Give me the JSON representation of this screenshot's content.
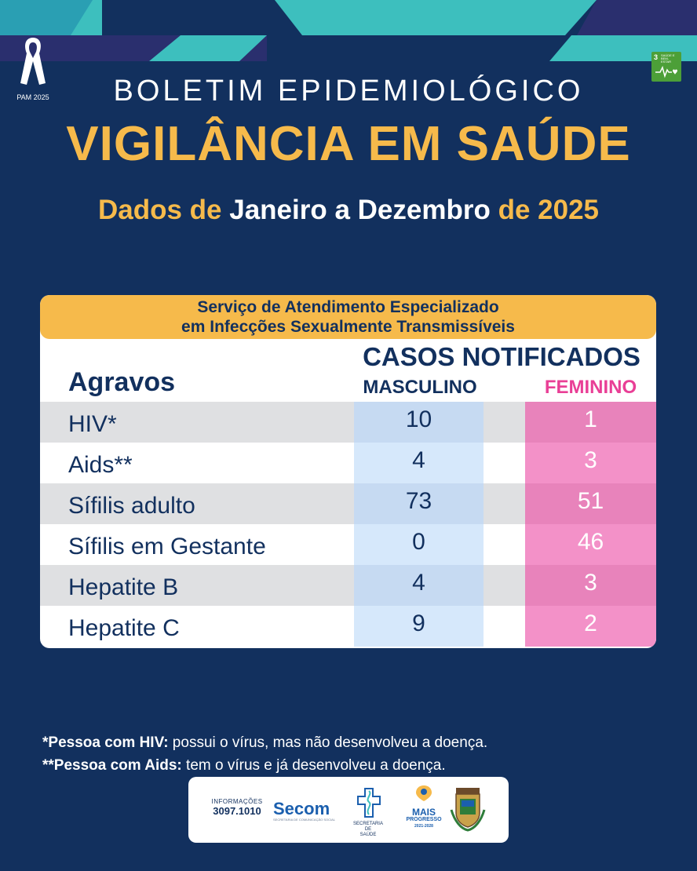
{
  "badges": {
    "pam_label": "PAM 2025",
    "sdg_number": "3",
    "sdg_text": "SAÚDE E BEM-ESTAR"
  },
  "header": {
    "line1": "BOLETIM EPIDEMIOLÓGICO",
    "line2": "VIGILÂNCIA EM SAÚDE",
    "line3_part1": "Dados de",
    "line3_part2": "Janeiro a Dezembro",
    "line3_part3": "de 2025"
  },
  "table": {
    "header_line1": "Serviço de Atendimento Especializado",
    "header_line2": "em Infecções Sexualmente Transmissíveis",
    "casos_label": "CASOS NOTIFICADOS",
    "agravos_label": "Agravos",
    "col_masculino": "MASCULINO",
    "col_feminino": "FEMININO",
    "rows": [
      {
        "label": "HIV*",
        "masculino": "10",
        "feminino": "1"
      },
      {
        "label": "Aids**",
        "masculino": "4",
        "feminino": "3"
      },
      {
        "label": "Sífilis adulto",
        "masculino": "73",
        "feminino": "51"
      },
      {
        "label": "Sífilis em Gestante",
        "masculino": "0",
        "feminino": "46"
      },
      {
        "label": "Hepatite B",
        "masculino": "4",
        "feminino": "3"
      },
      {
        "label": "Hepatite C",
        "masculino": "9",
        "feminino": "2"
      }
    ]
  },
  "notes": {
    "note1_bold": "*Pessoa com HIV:",
    "note1_text": " possui o vírus, mas não desenvolveu a doença.",
    "note2_bold": "**Pessoa com Aids:",
    "note2_text": " tem o vírus e já desenvolveu a doença."
  },
  "footer": {
    "info_label": "INFORMAÇÕES",
    "info_phone": "3097.1010",
    "secom": "Secom",
    "secom_sub": "SECRETARIA DE COMUNICAÇÃO SOCIAL",
    "saude_line1": "SECRETARIA DE",
    "saude_line2": "SAÚDE",
    "mais_line1": "MAIS",
    "mais_line2": "PROGRESSO",
    "mais_years": "2021-2028"
  },
  "colors": {
    "background": "#12305e",
    "accent_gold": "#f6ba4b",
    "teal": "#3dbfbe",
    "feminino_pink": "#e93f96"
  }
}
